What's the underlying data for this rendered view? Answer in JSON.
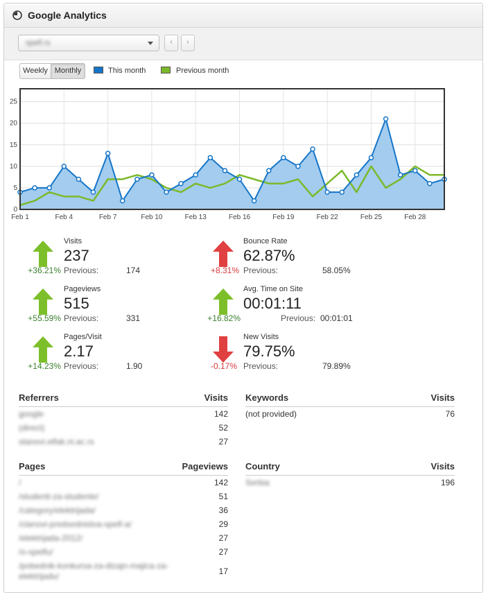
{
  "header": {
    "title": "Google Analytics",
    "icon": "analytics-pie-icon"
  },
  "toolbar": {
    "site_value": "spelf.rs",
    "prev_label": "‹",
    "next_label": "›"
  },
  "view_toggle": {
    "weekly": "Weekly",
    "monthly": "Monthly",
    "active": "Monthly"
  },
  "legend": {
    "this_month": "This month",
    "previous_month": "Previous month"
  },
  "colors": {
    "this_month": "#1475c8",
    "this_month_fill": "#9ec9ee",
    "previous_month": "#7cb92a",
    "up": "#7dbf2a",
    "down": "#e04040"
  },
  "chart_data": {
    "type": "area",
    "x": [
      "Feb 1",
      "Feb 2",
      "Feb 3",
      "Feb 4",
      "Feb 5",
      "Feb 6",
      "Feb 7",
      "Feb 8",
      "Feb 9",
      "Feb 10",
      "Feb 11",
      "Feb 12",
      "Feb 13",
      "Feb 14",
      "Feb 15",
      "Feb 16",
      "Feb 17",
      "Feb 18",
      "Feb 19",
      "Feb 20",
      "Feb 21",
      "Feb 22",
      "Feb 23",
      "Feb 24",
      "Feb 25",
      "Feb 26",
      "Feb 27",
      "Feb 28",
      "Feb 29",
      "Feb 30"
    ],
    "x_tick_labels": [
      "Feb 1",
      "Feb 4",
      "Feb 7",
      "Feb 10",
      "Feb 13",
      "Feb 16",
      "Feb 19",
      "Feb 22",
      "Feb 25",
      "Feb 28"
    ],
    "series": [
      {
        "name": "This month",
        "values": [
          4,
          5,
          5,
          10,
          7,
          4,
          13,
          2,
          7,
          8,
          4,
          6,
          8,
          12,
          9,
          7,
          2,
          9,
          12,
          10,
          14,
          4,
          4,
          8,
          12,
          21,
          8,
          9,
          6,
          7
        ]
      },
      {
        "name": "Previous month",
        "values": [
          1,
          2,
          4,
          3,
          3,
          2,
          7,
          7,
          8,
          7,
          5,
          4,
          6,
          5,
          6,
          8,
          7,
          6,
          6,
          7,
          3,
          6,
          9,
          4,
          10,
          5,
          7,
          10,
          8,
          8
        ]
      }
    ],
    "ylim": [
      0,
      28
    ],
    "yticks": [
      0,
      5,
      10,
      15,
      20,
      25
    ],
    "grid": true,
    "legend": "top-left"
  },
  "stats": {
    "visits": {
      "label": "Visits",
      "value": "237",
      "change": "+36.21%",
      "prev_label": "Previous:",
      "prev_value": "174",
      "direction": "up"
    },
    "pageviews": {
      "label": "Pageviews",
      "value": "515",
      "change": "+55.59%",
      "prev_label": "Previous:",
      "prev_value": "331",
      "direction": "up"
    },
    "pages_visit": {
      "label": "Pages/Visit",
      "value": "2.17",
      "change": "+14.23%",
      "prev_label": "Previous:",
      "prev_value": "1.90",
      "direction": "up"
    },
    "bounce": {
      "label": "Bounce Rate",
      "value": "62.87%",
      "change": "+8.31%",
      "prev_label": "Previous:",
      "prev_value": "58.05%",
      "direction": "up"
    },
    "avg_time": {
      "label": "Avg. Time on Site",
      "value": "00:01:11",
      "change": "+16.82%",
      "prev_label": "Previous:",
      "prev_value": "00:01:01",
      "direction": "up"
    },
    "new_visits": {
      "label": "New Visits",
      "value": "79.75%",
      "change": "-0.17%",
      "prev_label": "Previous:",
      "prev_value": "79.89%",
      "direction": "down"
    }
  },
  "referrers": {
    "title": "Referrers",
    "col": "Visits",
    "rows": [
      {
        "name": "google",
        "value": "142"
      },
      {
        "name": "(direct)",
        "value": "52"
      },
      {
        "name": "stanovi.elfak.ni.ac.rs",
        "value": "27"
      }
    ]
  },
  "keywords": {
    "title": "Keywords",
    "col": "Visits",
    "rows": [
      {
        "name": "(not provided)",
        "value": "76"
      }
    ]
  },
  "pages": {
    "title": "Pages",
    "col": "Pageviews",
    "rows": [
      {
        "name": "/",
        "value": "142"
      },
      {
        "name": "/studenti-za-studente/",
        "value": "51"
      },
      {
        "name": "/category/elektrijada/",
        "value": "36"
      },
      {
        "name": "/clanovi-predsednistva-spelf-a/",
        "value": "29"
      },
      {
        "name": "/elektrijada-2012/",
        "value": "27"
      },
      {
        "name": "/o-spelfu/",
        "value": "27"
      },
      {
        "name": "/pobednik-konkursa-za-dizajn-majica-za-elektrijadu/",
        "value": "17"
      }
    ]
  },
  "country": {
    "title": "Country",
    "col": "Visits",
    "rows": [
      {
        "name": "Serbia",
        "value": "196"
      }
    ]
  }
}
